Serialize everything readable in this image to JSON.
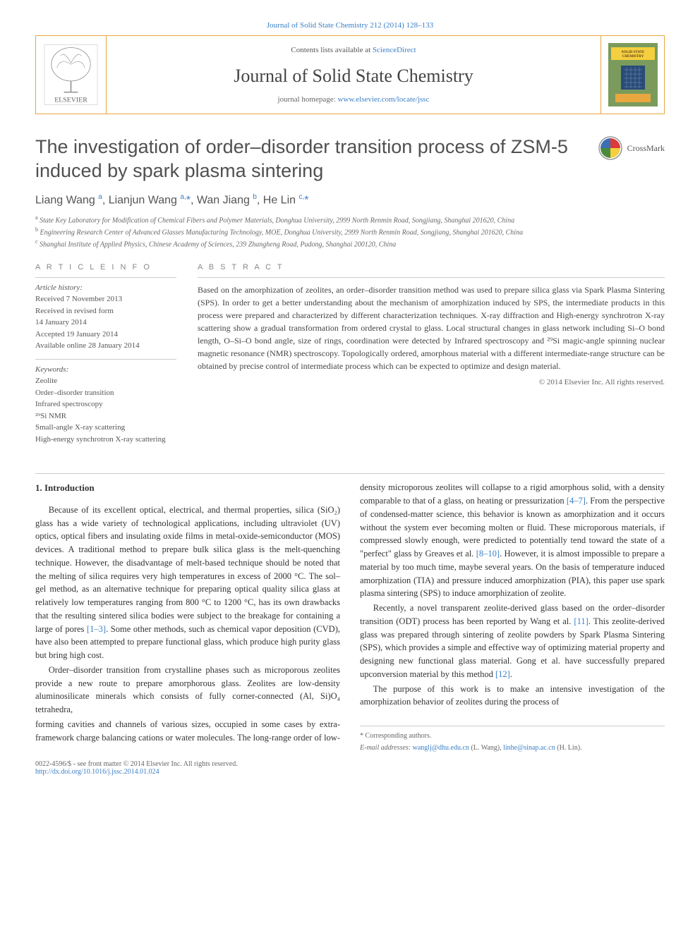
{
  "top_link": {
    "prefix": "Journal of Solid State Chemistry 212 (2014) 128–133"
  },
  "header": {
    "contents_prefix": "Contents lists available at ",
    "contents_link": "ScienceDirect",
    "journal": "Journal of Solid State Chemistry",
    "homepage_prefix": "journal homepage: ",
    "homepage_link": "www.elsevier.com/locate/jssc"
  },
  "crossmark_label": "CrossMark",
  "title": "The investigation of order–disorder transition process of ZSM-5 induced by spark plasma sintering",
  "authors_html": "Liang Wang <sup>a</sup>, Lianjun Wang <sup>a,</sup><span class='star'>*</span>, Wan Jiang <sup>b</sup>, He Lin <sup>c,</sup><span class='star'>*</span>",
  "affiliations": [
    "State Key Laboratory for Modification of Chemical Fibers and Polymer Materials, Donghua University, 2999 North Renmin Road, Songjiang, Shanghai 201620, China",
    "Engineering Research Center of Advanced Glasses Manufacturing Technology, MOE, Donghua University, 2999 North Renmin Road, Songjiang, Shanghai 201620, China",
    "Shanghai Institute of Applied Physics, Chinese Academy of Sciences, 239 Zhangheng Road, Pudong, Shanghai 200120, China"
  ],
  "aff_labels": [
    "a",
    "b",
    "c"
  ],
  "info": {
    "label": "A R T I C L E  I N F O",
    "history_label": "Article history:",
    "history": [
      "Received 7 November 2013",
      "Received in revised form",
      "14 January 2014",
      "Accepted 19 January 2014",
      "Available online 28 January 2014"
    ],
    "keywords_label": "Keywords:",
    "keywords": [
      "Zeolite",
      "Order–disorder transition",
      "Infrared spectroscopy",
      "²⁹Si NMR",
      "Small-angle X-ray scattering",
      "High-energy synchrotron X-ray scattering"
    ]
  },
  "abstract": {
    "label": "A B S T R A C T",
    "text": "Based on the amorphization of zeolites, an order–disorder transition method was used to prepare silica glass via Spark Plasma Sintering (SPS). In order to get a better understanding about the mechanism of amorphization induced by SPS, the intermediate products in this process were prepared and characterized by different characterization techniques. X-ray diffraction and High-energy synchrotron X-ray scattering show a gradual transformation from ordered crystal to glass. Local structural changes in glass network including Si–O bond length, O–Si–O bond angle, size of rings, coordination were detected by Infrared spectroscopy and ²⁹Si magic-angle spinning nuclear magnetic resonance (NMR) spectroscopy. Topologically ordered, amorphous material with a different intermediate-range structure can be obtained by precise control of intermediate process which can be expected to optimize and design material.",
    "copyright": "© 2014 Elsevier Inc. All rights reserved."
  },
  "body": {
    "heading": "1. Introduction",
    "p1": "Because of its excellent optical, electrical, and thermal properties, silica (SiO₂) glass has a wide variety of technological applications, including ultraviolet (UV) optics, optical fibers and insulating oxide films in metal-oxide-semiconductor (MOS) devices. A traditional method to prepare bulk silica glass is the melt-quenching technique. However, the disadvantage of melt-based technique should be noted that the melting of silica requires very high temperatures in excess of 2000 °C. The sol–gel method, as an alternative technique for preparing optical quality silica glass at relatively low temperatures ranging from 800 °C to 1200 °C, has its own drawbacks that the resulting sintered silica bodies were subject to the breakage for containing a large of pores ",
    "ref1": "[1–3]",
    "p1b": ". Some other methods, such as chemical vapor deposition (CVD), have also been attempted to prepare functional glass, which produce high purity glass but bring high cost.",
    "p2": "Order–disorder transition from crystalline phases such as microporous zeolites provide a new route to prepare amorphorous glass. Zeolites are low-density aluminosilicate minerals which consists of fully corner-connected (Al, Si)O₄ tetrahedra,",
    "p3a": "forming cavities and channels of various sizes, occupied in some cases by extra-framework charge balancing cations or water molecules. The long-range order of low-density microporous zeolites will collapse to a rigid amorphous solid, with a density comparable to that of a glass, on heating or pressurization ",
    "ref2": "[4–7]",
    "p3b": ". From the perspective of condensed-matter science, this behavior is known as amorphization and it occurs without the system ever becoming molten or fluid. These microporous materials, if compressed slowly enough, were predicted to potentially tend toward the state of a \"perfect\" glass by Greaves et al. ",
    "ref3": "[8–10]",
    "p3c": ". However, it is almost impossible to prepare a material by too much time, maybe several years. On the basis of temperature induced amorphization (TIA) and pressure induced amorphization (PIA), this paper use spark plasma sintering (SPS) to induce amorphization of zeolite.",
    "p4a": "Recently, a novel transparent zeolite-derived glass based on the order–disorder transition (ODT) process has been reported by Wang et al. ",
    "ref4": "[11]",
    "p4b": ". This zeolite-derived glass was prepared through sintering of zeolite powders by Spark Plasma Sintering (SPS), which provides a simple and effective way of optimizing material property and designing new functional glass material. Gong et al. have successfully prepared upconversion material by this method ",
    "ref5": "[12]",
    "p4c": ".",
    "p5": "The purpose of this work is to make an intensive investigation of the amorphization behavior of zeolites during the process of"
  },
  "footer": {
    "corr_label": "* Corresponding authors.",
    "email_label": "E-mail addresses: ",
    "email1": "wanglj@dhu.edu.cn",
    "email1_name": " (L. Wang), ",
    "email2": "linhe@sinap.ac.cn",
    "email2_name": " (H. Lin).",
    "issn": "0022-4596/$ - see front matter © 2014 Elsevier Inc. All rights reserved.",
    "doi": "http://dx.doi.org/10.1016/j.jssc.2014.01.024"
  },
  "colors": {
    "link": "#3b7fc4",
    "border": "#e9a740",
    "text": "#333333",
    "muted": "#666666"
  }
}
